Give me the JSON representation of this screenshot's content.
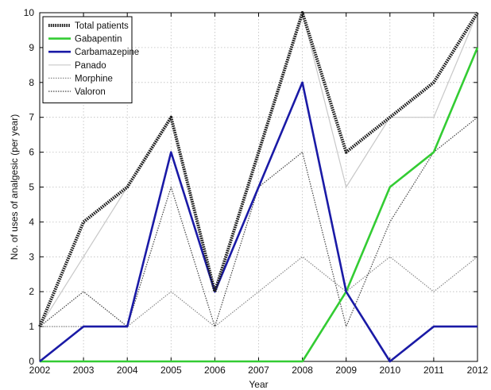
{
  "chart_data": {
    "type": "line",
    "xlabel": "Year",
    "ylabel": "No. of uses of analgesic (per year)",
    "xlim": [
      2002,
      2012
    ],
    "ylim": [
      0,
      10
    ],
    "x": [
      2002,
      2003,
      2004,
      2005,
      2006,
      2007,
      2008,
      2009,
      2010,
      2011,
      2012
    ],
    "xticks": [
      "2002",
      "2003",
      "2004",
      "2005",
      "2006",
      "2007",
      "2008",
      "2009",
      "2010",
      "2011",
      "2012"
    ],
    "yticks": [
      "0",
      "1",
      "2",
      "3",
      "4",
      "5",
      "6",
      "7",
      "8",
      "9",
      "10"
    ],
    "grid": true,
    "legend_position": "top-left",
    "series": [
      {
        "name": "Total patients",
        "values": [
          1,
          4,
          5,
          7,
          2,
          6,
          10,
          6,
          7,
          8,
          10
        ],
        "color": "#1a1a1a",
        "style": "dotted-thick"
      },
      {
        "name": "Gabapentin",
        "values": [
          0,
          0,
          0,
          0,
          0,
          0,
          0,
          2,
          5,
          6,
          9
        ],
        "color": "#33cc33",
        "style": "solid"
      },
      {
        "name": "Carbamazepine",
        "values": [
          0,
          1,
          1,
          6,
          2,
          5,
          8,
          2,
          0,
          1,
          1
        ],
        "color": "#1a1aa6",
        "style": "solid"
      },
      {
        "name": "Panado",
        "values": [
          1,
          3,
          5,
          7,
          2,
          6,
          10,
          5,
          7,
          7,
          10
        ],
        "color": "#c8c8c8",
        "style": "solid"
      },
      {
        "name": "Morphine",
        "values": [
          1,
          1,
          1,
          2,
          1,
          2,
          3,
          2,
          3,
          2,
          3
        ],
        "color": "#8a8a8a",
        "style": "dotted"
      },
      {
        "name": "Valoron",
        "values": [
          1,
          2,
          1,
          5,
          1,
          5,
          6,
          1,
          4,
          6,
          7
        ],
        "color": "#444444",
        "style": "dotted"
      }
    ]
  }
}
